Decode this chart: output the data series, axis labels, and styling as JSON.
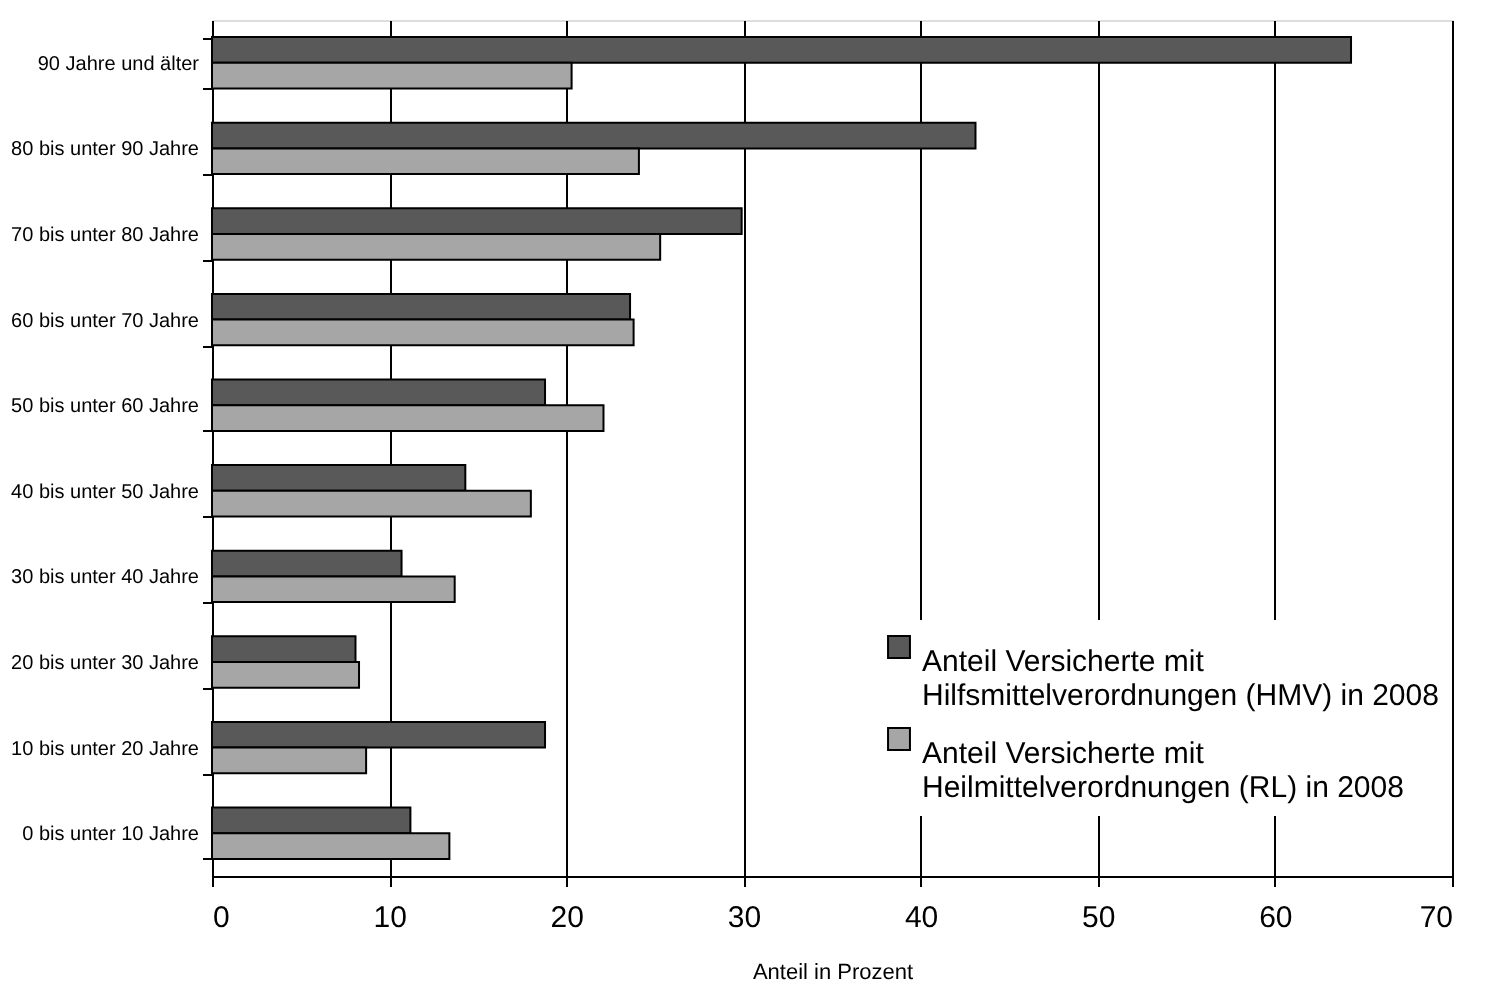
{
  "chart_data": {
    "type": "bar",
    "orientation": "horizontal",
    "categories": [
      "90 Jahre und älter",
      "80 bis unter 90 Jahre",
      "70 bis unter 80 Jahre",
      "60 bis unter 70 Jahre",
      "50 bis unter 60 Jahre",
      "40 bis unter 50 Jahre",
      "30 bis unter 40 Jahre",
      "20 bis unter 30 Jahre",
      "10 bis unter 20 Jahre",
      "0 bis unter 10 Jahre"
    ],
    "series": [
      {
        "name": "Anteil Versicherte mit Hilfsmittelverordnungen (HMV) in 2008",
        "color": "#595959",
        "values": [
          64.3,
          43.1,
          29.9,
          23.6,
          18.8,
          14.3,
          10.7,
          8.1,
          18.8,
          11.2
        ]
      },
      {
        "name": "Anteil Versicherte mit Heilmittelverordnungen (RL) in 2008",
        "color": "#a6a6a6",
        "values": [
          20.3,
          24.1,
          25.3,
          23.8,
          22.1,
          18.0,
          13.7,
          8.3,
          8.7,
          13.4
        ]
      }
    ],
    "xlabel": "Anteil in Prozent",
    "xlim": [
      0,
      70
    ],
    "xticks": [
      0,
      10,
      20,
      30,
      40,
      50,
      60,
      70
    ],
    "grid": "x",
    "legend": "bottom right"
  }
}
